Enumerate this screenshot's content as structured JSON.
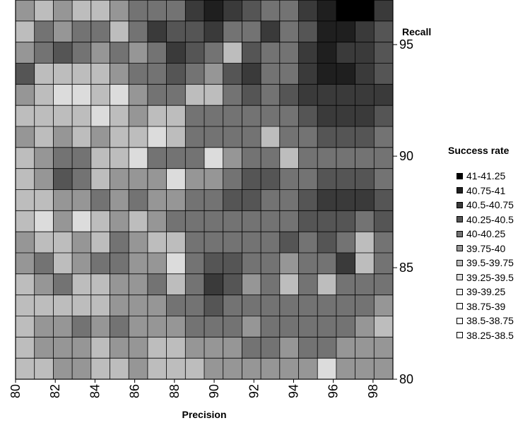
{
  "chart_data": {
    "type": "heatmap",
    "subtype": "filled-contour",
    "xlabel": "Precision",
    "ylabel": "Recall",
    "xlim": [
      80,
      99
    ],
    "ylim": [
      80,
      97
    ],
    "x_ticks": [
      "80",
      "82",
      "84",
      "86",
      "88",
      "90",
      "92",
      "94",
      "96",
      "98"
    ],
    "y_ticks": [
      "80",
      "85",
      "90",
      "95"
    ],
    "grid": true,
    "legend_position": "right",
    "legend": {
      "title": "Success rate",
      "entries": [
        {
          "label": "41-41.25",
          "color": "#000000"
        },
        {
          "label": "40.75-41",
          "color": "#1f1f1f"
        },
        {
          "label": "40.5-40.75",
          "color": "#3a3a3a"
        },
        {
          "label": "40.25-40.5",
          "color": "#555555"
        },
        {
          "label": "40-40.25",
          "color": "#737373"
        },
        {
          "label": "39.75-40",
          "color": "#969696"
        },
        {
          "label": "39.5-39.75",
          "color": "#bdbdbd"
        },
        {
          "label": "39.25-39.5",
          "color": "#dcdcdc"
        },
        {
          "label": "39-39.25",
          "color": "#f2f2f2"
        },
        {
          "label": "38.75-39",
          "color": "#ffffff"
        },
        {
          "label": "38.5-38.75",
          "color": "#ffffff"
        },
        {
          "label": "38.25-38.5",
          "color": "#ffffff"
        }
      ]
    },
    "x": [
      80,
      81,
      82,
      83,
      84,
      85,
      86,
      87,
      88,
      89,
      90,
      91,
      92,
      93,
      94,
      95,
      96,
      97,
      98,
      99
    ],
    "y": [
      97,
      96,
      95,
      94,
      93,
      92,
      91,
      90,
      89,
      88,
      87,
      86,
      85,
      84,
      83,
      82,
      81,
      80
    ],
    "z": [
      [
        39.9,
        39.6,
        39.9,
        39.7,
        39.5,
        39.9,
        40.0,
        40.2,
        40.2,
        40.5,
        40.9,
        40.5,
        40.3,
        40.1,
        40.2,
        40.5,
        40.8,
        41.0,
        41.0,
        40.5
      ],
      [
        39.6,
        40.0,
        39.8,
        40.2,
        40.1,
        39.5,
        40.1,
        40.5,
        40.3,
        40.3,
        40.5,
        40.1,
        40.2,
        40.5,
        40.2,
        40.4,
        40.8,
        40.8,
        40.6,
        40.4
      ],
      [
        39.8,
        40.2,
        40.3,
        40.2,
        39.8,
        40.1,
        39.9,
        40.2,
        40.5,
        40.3,
        40.2,
        39.7,
        40.3,
        40.1,
        40.0,
        40.6,
        40.8,
        40.7,
        40.5,
        40.3
      ],
      [
        40.4,
        39.7,
        39.6,
        39.5,
        39.6,
        39.8,
        40.0,
        40.2,
        40.3,
        40.1,
        39.9,
        40.3,
        40.5,
        40.2,
        40.1,
        40.6,
        40.8,
        40.8,
        40.6,
        40.4
      ],
      [
        39.9,
        39.5,
        39.4,
        39.3,
        39.6,
        39.4,
        39.8,
        40.0,
        40.0,
        39.6,
        39.7,
        40.2,
        40.3,
        40.1,
        40.3,
        40.5,
        40.6,
        40.7,
        40.7,
        40.5
      ],
      [
        39.6,
        39.5,
        39.5,
        39.6,
        39.3,
        39.6,
        39.9,
        39.6,
        39.5,
        40.0,
        40.1,
        40.1,
        40.2,
        40.0,
        40.2,
        40.3,
        40.5,
        40.5,
        40.6,
        40.4
      ],
      [
        39.8,
        39.6,
        39.8,
        39.7,
        39.9,
        39.5,
        39.7,
        39.4,
        39.7,
        40.1,
        40.1,
        40.1,
        40.0,
        39.7,
        40.1,
        40.2,
        40.4,
        40.3,
        40.3,
        40.1
      ],
      [
        39.5,
        39.8,
        40.0,
        40.1,
        39.6,
        39.7,
        39.3,
        40.0,
        40.1,
        40.2,
        39.4,
        39.9,
        40.0,
        40.1,
        39.7,
        40.1,
        40.2,
        40.0,
        40.2,
        40.2
      ],
      [
        39.7,
        39.9,
        40.3,
        40.0,
        39.5,
        39.8,
        39.9,
        39.8,
        39.4,
        39.9,
        39.9,
        40.2,
        40.4,
        40.3,
        40.1,
        40.2,
        40.4,
        40.3,
        40.4,
        40.1
      ],
      [
        39.6,
        39.7,
        39.9,
        39.8,
        40.1,
        39.9,
        40.0,
        39.9,
        39.8,
        40.0,
        40.1,
        40.4,
        40.3,
        40.2,
        40.2,
        40.3,
        40.6,
        40.5,
        40.6,
        40.3
      ],
      [
        39.7,
        39.3,
        39.8,
        39.4,
        39.6,
        39.9,
        39.6,
        39.8,
        40.0,
        40.0,
        40.1,
        40.1,
        40.2,
        40.1,
        40.2,
        40.4,
        40.3,
        40.4,
        40.2,
        40.4
      ],
      [
        39.8,
        39.7,
        39.6,
        39.8,
        39.7,
        40.0,
        39.8,
        39.6,
        39.7,
        40.1,
        40.2,
        40.0,
        40.0,
        40.1,
        40.3,
        40.2,
        40.3,
        40.2,
        39.7,
        40.2
      ],
      [
        39.9,
        40.1,
        39.7,
        39.9,
        40.0,
        40.1,
        39.9,
        39.8,
        39.4,
        40.2,
        40.4,
        40.3,
        40.0,
        40.1,
        39.9,
        40.1,
        40.2,
        40.5,
        39.6,
        40.1
      ],
      [
        39.7,
        39.8,
        40.0,
        39.6,
        39.7,
        39.8,
        39.9,
        40.0,
        39.6,
        40.1,
        40.5,
        40.3,
        39.9,
        40.1,
        39.6,
        40.0,
        39.7,
        40.0,
        40.1,
        40.0
      ],
      [
        39.5,
        39.6,
        39.7,
        39.5,
        39.6,
        39.9,
        39.8,
        39.8,
        40.1,
        40.2,
        40.3,
        40.0,
        40.0,
        40.0,
        40.1,
        40.1,
        40.0,
        40.1,
        40.0,
        39.9
      ],
      [
        39.7,
        39.9,
        39.8,
        40.0,
        39.9,
        40.0,
        39.9,
        39.8,
        39.9,
        40.0,
        40.1,
        40.0,
        39.9,
        40.0,
        40.0,
        40.1,
        40.2,
        40.1,
        39.9,
        39.7
      ],
      [
        39.5,
        39.8,
        39.9,
        39.8,
        39.7,
        39.9,
        39.8,
        39.6,
        39.7,
        39.9,
        39.8,
        39.9,
        40.0,
        40.0,
        39.9,
        40.0,
        40.1,
        39.9,
        39.8,
        39.9
      ],
      [
        39.6,
        39.7,
        39.8,
        39.9,
        39.6,
        39.7,
        39.9,
        39.7,
        39.6,
        39.7,
        39.8,
        39.9,
        39.8,
        39.9,
        39.9,
        39.8,
        39.4,
        39.8,
        39.9,
        39.8
      ]
    ]
  }
}
